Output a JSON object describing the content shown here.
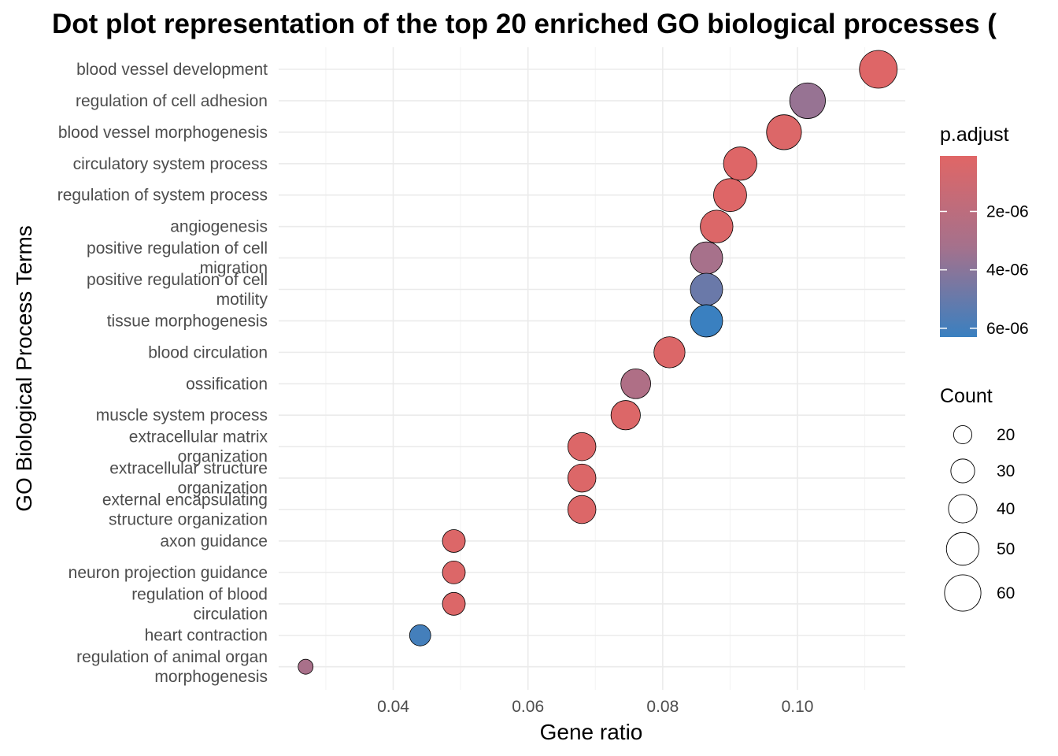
{
  "chart_data": {
    "type": "scatter",
    "title": "Dot plot representation of the top 20 enriched GO biological processes (",
    "xlabel": "Gene ratio",
    "ylabel": "GO Biological Process Terms",
    "xlim": [
      0.023,
      0.116
    ],
    "xticks": [
      "0.04",
      "0.06",
      "0.08",
      "0.10"
    ],
    "xtick_values": [
      0.04,
      0.06,
      0.08,
      0.1
    ],
    "grid": true,
    "terms": [
      [
        "blood vessel development"
      ],
      [
        "regulation of cell adhesion"
      ],
      [
        "blood vessel morphogenesis"
      ],
      [
        "circulatory system process"
      ],
      [
        "regulation of system process"
      ],
      [
        "angiogenesis"
      ],
      [
        "positive regulation of cell",
        "migration"
      ],
      [
        "positive regulation of cell",
        "motility"
      ],
      [
        "tissue morphogenesis"
      ],
      [
        "blood circulation"
      ],
      [
        "ossification"
      ],
      [
        "muscle system process"
      ],
      [
        "extracellular matrix",
        "organization"
      ],
      [
        "extracellular structure",
        "organization"
      ],
      [
        "external encapsulating",
        "structure organization"
      ],
      [
        "axon guidance"
      ],
      [
        "neuron projection guidance"
      ],
      [
        "regulation of blood",
        "circulation"
      ],
      [
        "heart contraction"
      ],
      [
        "regulation of animal organ",
        "morphogenesis"
      ]
    ],
    "gene_ratio": [
      0.112,
      0.1015,
      0.098,
      0.0915,
      0.09,
      0.088,
      0.0865,
      0.0865,
      0.0865,
      0.081,
      0.076,
      0.0745,
      0.068,
      0.068,
      0.068,
      0.049,
      0.049,
      0.049,
      0.044,
      0.027
    ],
    "count": [
      64,
      58,
      56,
      52,
      51,
      50,
      49,
      49,
      49,
      46,
      43,
      42,
      39,
      39,
      39,
      28,
      28,
      28,
      25,
      15
    ],
    "p_adjust": [
      2e-07,
      3.6e-06,
      3e-07,
      2e-07,
      2e-07,
      3e-07,
      3.1e-06,
      4.9e-06,
      6.3e-06,
      3e-07,
      2.7e-06,
      3e-07,
      3e-07,
      3e-07,
      3e-07,
      3e-07,
      3e-07,
      3e-07,
      6e-06,
      3e-06
    ],
    "color_legend": {
      "title": "p.adjust",
      "labels": [
        "2e-06",
        "4e-06",
        "6e-06"
      ],
      "values": [
        2e-06,
        4e-06,
        6e-06
      ],
      "range": [
        1e-07,
        6.3e-06
      ],
      "low_color": "#e06666",
      "mid_color": "#a5718c",
      "high_color": "#3a80c0"
    },
    "size_legend": {
      "title": "Count",
      "labels": [
        "20",
        "30",
        "40",
        "50",
        "60"
      ],
      "values": [
        20,
        30,
        40,
        50,
        60
      ]
    },
    "legend_position": "right"
  }
}
